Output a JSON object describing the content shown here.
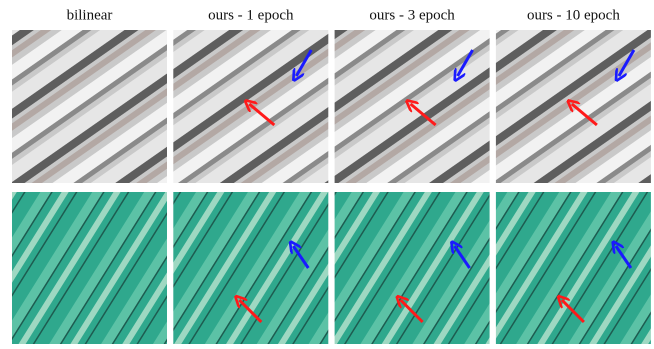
{
  "columns": [
    {
      "title": "bilinear"
    },
    {
      "title": "ours - 1 epoch"
    },
    {
      "title": "ours - 3 epoch"
    },
    {
      "title": "ours - 10 epoch"
    }
  ]
}
